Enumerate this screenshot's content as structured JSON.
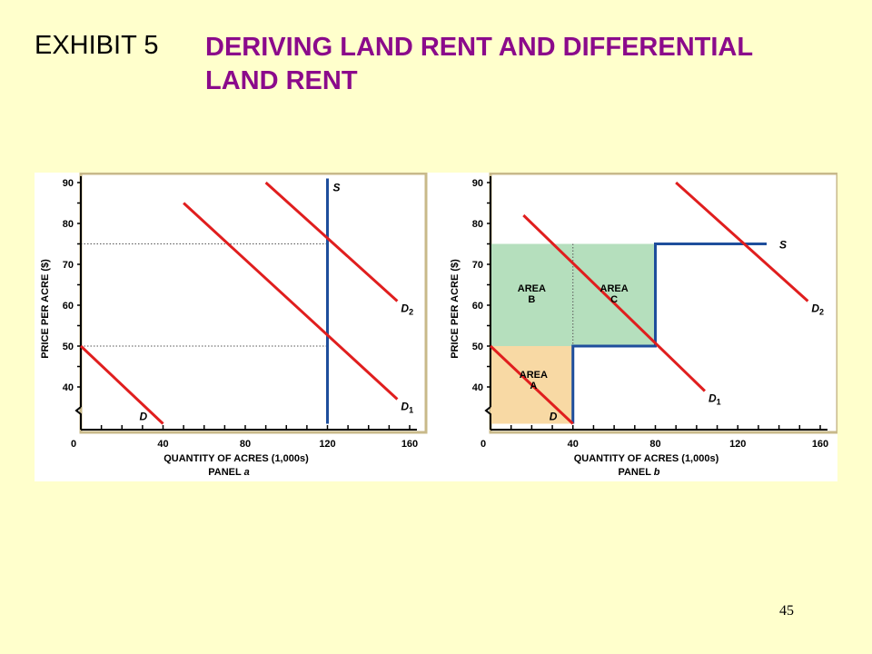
{
  "slide": {
    "exhibit_label": "EXHIBIT 5",
    "title": "DERIVING LAND RENT AND DIFFERENTIAL LAND RENT",
    "page_number": "45"
  },
  "chart_data": [
    {
      "type": "line",
      "panel_label": "PANEL",
      "panel_letter": "a",
      "xlabel": "QUANTITY OF ACRES (1,000s)",
      "ylabel": "PRICE PER ACRE ($)",
      "xlim": [
        0,
        160
      ],
      "ylim": [
        30,
        90
      ],
      "x_ticks": [
        0,
        40,
        80,
        120,
        160
      ],
      "y_ticks": [
        40,
        50,
        60,
        70,
        80,
        90
      ],
      "y_axis_break": true,
      "series": [
        {
          "name": "S",
          "color": "#1E4E9C",
          "points": [
            [
              120,
              31
            ],
            [
              120,
              91
            ]
          ]
        },
        {
          "name": "D",
          "color": "#E01E1E",
          "points": [
            [
              0,
              50
            ],
            [
              40,
              31
            ]
          ]
        },
        {
          "name": "D1",
          "color": "#E01E1E",
          "points": [
            [
              50,
              85
            ],
            [
              154,
              37
            ]
          ]
        },
        {
          "name": "D2",
          "color": "#E01E1E",
          "points": [
            [
              90,
              90
            ],
            [
              154,
              61
            ]
          ]
        }
      ],
      "reference_lines": [
        {
          "y": 75,
          "x_to": 120
        },
        {
          "y": 50,
          "x_to": 120
        }
      ],
      "areas": []
    },
    {
      "type": "line",
      "panel_label": "PANEL",
      "panel_letter": "b",
      "xlabel": "QUANTITY OF ACRES (1,000s)",
      "ylabel": "PRICE PER ACRE ($)",
      "xlim": [
        0,
        160
      ],
      "ylim": [
        30,
        90
      ],
      "x_ticks": [
        0,
        40,
        80,
        120,
        160
      ],
      "y_ticks": [
        40,
        50,
        60,
        70,
        80,
        90
      ],
      "y_axis_break": true,
      "series": [
        {
          "name": "S",
          "color": "#1E4E9C",
          "points": [
            [
              40,
              31
            ],
            [
              40,
              50
            ],
            [
              80,
              50
            ],
            [
              80,
              75
            ],
            [
              134,
              75
            ]
          ]
        },
        {
          "name": "D",
          "color": "#E01E1E",
          "points": [
            [
              0,
              50
            ],
            [
              40,
              31
            ]
          ]
        },
        {
          "name": "D1",
          "color": "#E01E1E",
          "points": [
            [
              16,
              82
            ],
            [
              104,
              39
            ]
          ]
        },
        {
          "name": "D2",
          "color": "#E01E1E",
          "points": [
            [
              90,
              90
            ],
            [
              154,
              61
            ]
          ]
        }
      ],
      "reference_lines": [
        {
          "x": 40,
          "y_from": 50,
          "y_to": 75
        }
      ],
      "areas": [
        {
          "name": "AREA A",
          "line1": "AREA",
          "line2": "A",
          "fill": "#F8D9A4",
          "x0": 0,
          "x1": 40,
          "y0": 31,
          "y1": 50
        },
        {
          "name": "AREA B",
          "line1": "AREA",
          "line2": "B",
          "fill": "#B5DFBD",
          "x0": 0,
          "x1": 40,
          "y0": 50,
          "y1": 75
        },
        {
          "name": "AREA C",
          "line1": "AREA",
          "line2": "C",
          "fill": "#B5DFBD",
          "x0": 40,
          "x1": 80,
          "y0": 50,
          "y1": 75
        }
      ]
    }
  ]
}
